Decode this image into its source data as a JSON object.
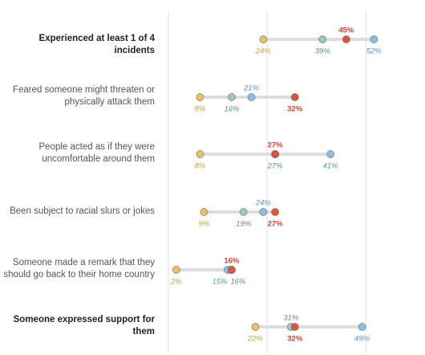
{
  "chart_data": {
    "type": "dot-range",
    "title": "",
    "xlabel": "",
    "ylabel": "",
    "xlim": [
      0,
      55
    ],
    "grid": true,
    "gridlines": [
      0,
      25,
      50
    ],
    "value_suffix": "%",
    "series": [
      {
        "key": "s1",
        "color": "#e8c26a",
        "label_color": "#c9a043"
      },
      {
        "key": "s2",
        "color": "#9ccbb8",
        "label_color": "#5f8f7f"
      },
      {
        "key": "s3",
        "color": "#8ebde6",
        "label_color": "#5a93c8"
      },
      {
        "key": "s4",
        "color": "#d9573d",
        "label_color": "#d0442c"
      }
    ],
    "rows": [
      {
        "label": [
          "Experienced at least 1 of 4 incidents"
        ],
        "bold": true,
        "values": {
          "s1": 24,
          "s2": 39,
          "s3": 52,
          "s4": 45
        }
      },
      {
        "label": [
          "Feared someone might threaten or",
          "physically attack them"
        ],
        "bold": false,
        "values": {
          "s1": 8,
          "s2": 16,
          "s3": 21,
          "s4": 32
        }
      },
      {
        "label": [
          "People acted as if they were",
          "uncomfortable around them"
        ],
        "bold": false,
        "values": {
          "s1": 8,
          "s2": 27,
          "s3": 41,
          "s4": 27
        }
      },
      {
        "label": [
          "Been subject to racial slurs or jokes"
        ],
        "bold": false,
        "values": {
          "s1": 9,
          "s2": 19,
          "s3": 24,
          "s4": 27
        }
      },
      {
        "label": [
          "Someone made a remark that they",
          "should go back to their home country"
        ],
        "bold": false,
        "values": {
          "s1": 2,
          "s2": 16,
          "s3": 15,
          "s4": 16
        }
      },
      {
        "label": [
          "Someone expressed support for",
          "them"
        ],
        "bold": true,
        "values": {
          "s1": 22,
          "s2": 31,
          "s3": 49,
          "s4": 32
        }
      }
    ]
  }
}
